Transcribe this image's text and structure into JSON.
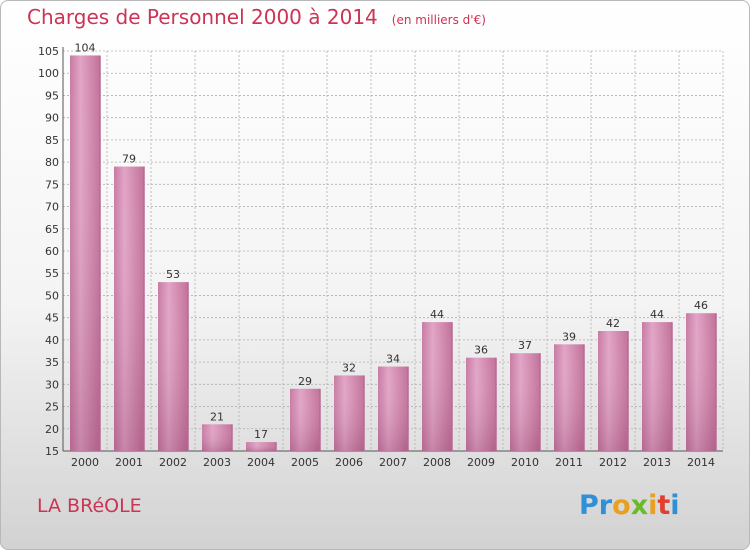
{
  "header": {
    "title": "Charges de Personnel 2000 à 2014",
    "subtitle": "(en milliers d'€)"
  },
  "footer": {
    "place": "LA BRéOLE",
    "logo_text": "Proxiti"
  },
  "colors": {
    "title": "#cc3355",
    "bar_fill": "#d98fb5",
    "bar_side": "#b86a94",
    "grid": "#b0b0b0"
  },
  "chart_data": {
    "type": "bar",
    "title": "Charges de Personnel 2000 à 2014",
    "subtitle": "(en milliers d'€)",
    "categories": [
      "2000",
      "2001",
      "2002",
      "2003",
      "2004",
      "2005",
      "2006",
      "2007",
      "2008",
      "2009",
      "2010",
      "2011",
      "2012",
      "2013",
      "2014"
    ],
    "values": [
      104,
      79,
      53,
      21,
      17,
      29,
      32,
      34,
      44,
      36,
      37,
      39,
      42,
      44,
      46
    ],
    "ylim": [
      15,
      105
    ],
    "yticks": [
      15,
      20,
      25,
      30,
      35,
      40,
      45,
      50,
      55,
      60,
      65,
      70,
      75,
      80,
      85,
      90,
      95,
      100,
      105
    ],
    "grid": true,
    "data_labels": true
  }
}
